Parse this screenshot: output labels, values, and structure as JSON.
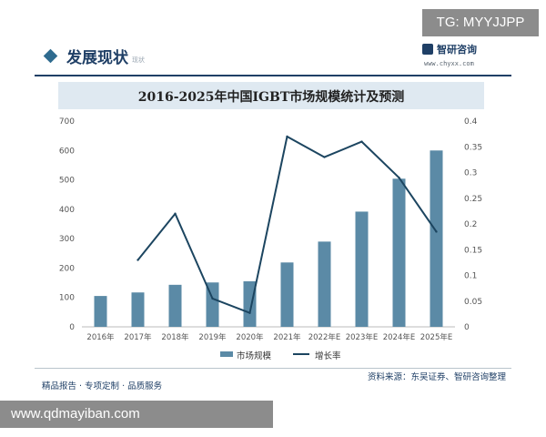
{
  "watermark_top": "TG: MYYJJPP",
  "watermark_bottom": "www.qdmayiban.com",
  "section": {
    "title": "发展现状",
    "subtitle_en": "现状"
  },
  "logo": {
    "name": "智研咨询",
    "url": "www.chyxx.com"
  },
  "footer": {
    "left": "精品报告 · 专项定制 · 品质服务",
    "right": "资料来源：东吴证券、智研咨询整理"
  },
  "colors": {
    "bar": "#5b8aa6",
    "line": "#1c4560",
    "axis_text": "#555555",
    "title_bg": "#dfe9f1"
  },
  "chart_data": {
    "type": "bar",
    "title": "2016-2025年中国IGBT市场规模统计及预测",
    "categories": [
      "2016年",
      "2017年",
      "2018年",
      "2019年",
      "2020年",
      "2021年",
      "2022年E",
      "2023年E",
      "2024年E",
      "2025年E"
    ],
    "series": [
      {
        "name": "市场规模",
        "type": "bar",
        "axis": "left",
        "values": [
          105,
          117,
          143,
          151,
          155,
          219,
          290,
          392,
          504,
          600
        ]
      },
      {
        "name": "增长率",
        "type": "line",
        "axis": "right",
        "values": [
          null,
          0.13,
          0.22,
          0.055,
          0.027,
          0.37,
          0.33,
          0.36,
          0.29,
          0.185
        ]
      }
    ],
    "ylim_left": [
      0,
      700
    ],
    "yticks_left": [
      "0",
      "100",
      "200",
      "300",
      "400",
      "500",
      "600",
      "700"
    ],
    "ylim_right": [
      0,
      0.4
    ],
    "yticks_right": [
      "0",
      "0.05",
      "0.1",
      "0.15",
      "0.2",
      "0.25",
      "0.3",
      "0.35",
      "0.4"
    ],
    "legend_position": "bottom-center",
    "grid": false
  }
}
